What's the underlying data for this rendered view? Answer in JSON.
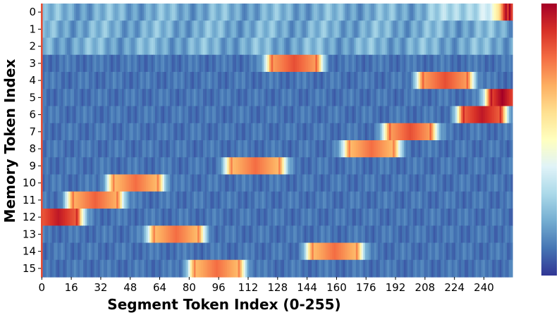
{
  "chart_data": {
    "type": "heatmap",
    "title": "",
    "xlabel": "Segment Token Index (0-255)",
    "ylabel": "Memory Token Index",
    "x_range": [
      0,
      255
    ],
    "y_categories": [
      "0",
      "1",
      "2",
      "3",
      "4",
      "5",
      "6",
      "7",
      "8",
      "9",
      "10",
      "11",
      "12",
      "13",
      "14",
      "15"
    ],
    "x_ticks": [
      0,
      16,
      32,
      48,
      64,
      80,
      96,
      112,
      128,
      144,
      160,
      176,
      192,
      208,
      224,
      240
    ],
    "colormap": "RdYlBu_r",
    "colors": [
      "#313695",
      "#4575b4",
      "#74add1",
      "#abd9e9",
      "#e0f3f8",
      "#ffffbf",
      "#fee090",
      "#fdae61",
      "#f46d43",
      "#d73027",
      "#a50026"
    ],
    "colorbar": true,
    "hot_spots": [
      {
        "row": 0,
        "x_start": 253,
        "x_end": 255,
        "level": 1.0
      },
      {
        "row": 3,
        "x_start": 126,
        "x_end": 148,
        "level": 0.85
      },
      {
        "row": 4,
        "x_start": 208,
        "x_end": 230,
        "level": 0.85
      },
      {
        "row": 5,
        "x_start": 245,
        "x_end": 255,
        "level": 1.0
      },
      {
        "row": 6,
        "x_start": 230,
        "x_end": 248,
        "level": 0.95
      },
      {
        "row": 7,
        "x_start": 190,
        "x_end": 210,
        "level": 0.85
      },
      {
        "row": 8,
        "x_start": 168,
        "x_end": 190,
        "level": 0.8
      },
      {
        "row": 9,
        "x_start": 104,
        "x_end": 128,
        "level": 0.8
      },
      {
        "row": 10,
        "x_start": 40,
        "x_end": 62,
        "level": 0.8
      },
      {
        "row": 11,
        "x_start": 18,
        "x_end": 40,
        "level": 0.82
      },
      {
        "row": 12,
        "x_start": 0,
        "x_end": 18,
        "level": 0.95
      },
      {
        "row": 13,
        "x_start": 62,
        "x_end": 84,
        "level": 0.8
      },
      {
        "row": 14,
        "x_start": 148,
        "x_end": 170,
        "level": 0.8
      },
      {
        "row": 15,
        "x_start": 84,
        "x_end": 106,
        "level": 0.8
      }
    ]
  }
}
